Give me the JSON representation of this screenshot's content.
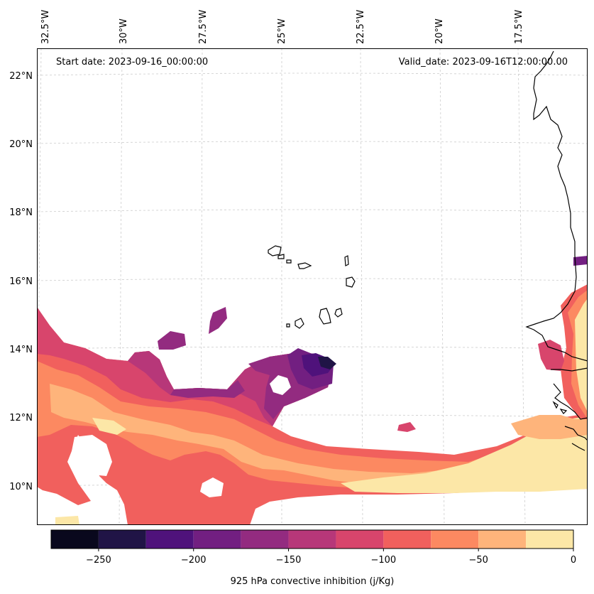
{
  "map": {
    "start_label": "Start date: 2023-09-16_00:00:00",
    "valid_label": "Valid_date: 2023-09-16T12:00:00.00",
    "lon_labels": [
      "32.5°W",
      "30°W",
      "27.5°W",
      "25°W",
      "22.5°W",
      "20°W",
      "17.5°W"
    ],
    "lat_labels": [
      "22°N",
      "20°N",
      "18°N",
      "16°N",
      "14°N",
      "12°N",
      "10°N"
    ]
  },
  "colorbar": {
    "title": "925 hPa convective inhibition (j/Kg)",
    "ticks": [
      "−250",
      "−200",
      "−150",
      "−100",
      "−50",
      "0"
    ],
    "levels": [
      -275,
      -250,
      -225,
      -200,
      -175,
      -150,
      -125,
      -100,
      -75,
      -50,
      -25,
      0
    ],
    "colors": [
      "#09081d",
      "#201446",
      "#4f127b",
      "#721f81",
      "#932b80",
      "#b73779",
      "#d8456c",
      "#f1605d",
      "#fc8961",
      "#feb47b",
      "#fce7a7"
    ]
  }
}
